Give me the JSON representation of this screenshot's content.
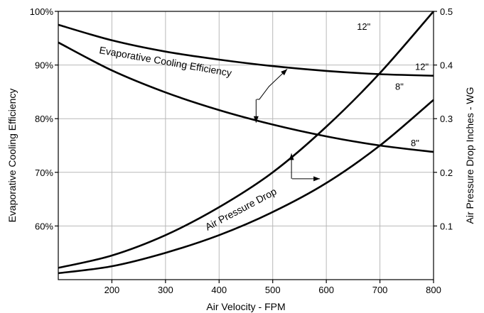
{
  "chart_data": {
    "type": "line",
    "title": "",
    "xlabel": "Air Velocity - FPM",
    "ylabel_left": "Evaporative Cooling Efficiency",
    "ylabel_right": "Air Pressure Drop Inches - WG",
    "xlim": [
      100,
      800
    ],
    "ylim_left": [
      50,
      100
    ],
    "ylim_right": [
      0,
      0.5
    ],
    "x_ticks": [
      "200",
      "300",
      "400",
      "500",
      "600",
      "700",
      "800"
    ],
    "y_left_ticks": [
      "60%",
      "70%",
      "80%",
      "90%",
      "100%"
    ],
    "y_right_ticks": [
      "0.1",
      "0.2",
      "0.3",
      "0.4",
      "0.5"
    ],
    "grid": true,
    "series": [
      {
        "name": "12\"",
        "group": "Evaporative Cooling Efficiency",
        "axis": "left",
        "x": [
          100,
          200,
          300,
          400,
          500,
          600,
          700,
          800
        ],
        "y": [
          97.5,
          94.6,
          92.5,
          91.0,
          89.8,
          88.9,
          88.3,
          88.0
        ]
      },
      {
        "name": "8\"",
        "group": "Evaporative Cooling Efficiency",
        "axis": "left",
        "x": [
          100,
          200,
          300,
          400,
          500,
          600,
          700,
          800
        ],
        "y": [
          94.2,
          89.0,
          84.9,
          81.6,
          78.9,
          76.7,
          75.0,
          73.8
        ]
      },
      {
        "name": "12\"",
        "group": "Air Pressure Drop",
        "axis": "right",
        "x": [
          100,
          200,
          300,
          400,
          500,
          600,
          700,
          800
        ],
        "y": [
          0.022,
          0.045,
          0.083,
          0.135,
          0.2,
          0.285,
          0.385,
          0.5
        ]
      },
      {
        "name": "8\"",
        "group": "Air Pressure Drop",
        "axis": "right",
        "x": [
          100,
          200,
          300,
          400,
          500,
          600,
          700,
          800
        ],
        "y": [
          0.012,
          0.025,
          0.05,
          0.083,
          0.126,
          0.18,
          0.25,
          0.335
        ]
      }
    ],
    "annotations": [
      "Evaporative Cooling Efficiency",
      "Air Pressure Drop"
    ]
  }
}
